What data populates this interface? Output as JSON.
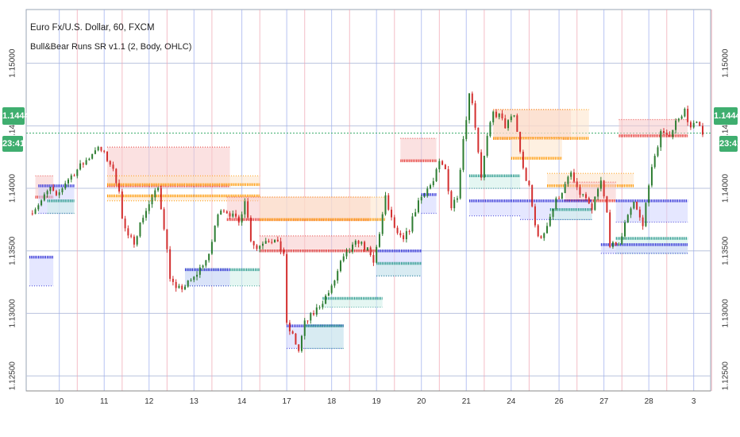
{
  "header": {
    "title": "Euro Fx/U.S. Dollar, 60, FXCM",
    "indicator": "Bull&Bear Runs SR v1.1 (2, Body, OHLC)"
  },
  "price_badge": "1.14442",
  "time_badge": "23:41",
  "colors": {
    "up_candle": "#2e7d32",
    "down_candle": "#d32f2f",
    "bear_line": "#e53935",
    "bear_zone": "#f8c8c8",
    "bear_line2": "#ff9800",
    "bear_zone2": "#fde4c8",
    "bull_line": "#2f2fd6",
    "bull_zone": "#cfd3ff",
    "bull_line2": "#26988a",
    "bull_zone2": "#cdeee8",
    "badge": "#3fae6f"
  },
  "chart_data": {
    "type": "candlestick",
    "symbol": "EURUSD",
    "ylim": [
      1.1238,
      1.1543
    ],
    "x_tick_labels": [
      "10",
      "11",
      "12",
      "13",
      "14",
      "17",
      "18",
      "19",
      "20",
      "21",
      "24",
      "26",
      "27",
      "28",
      "3"
    ],
    "y_tick_labels": [
      "1.15000",
      "1.14500",
      "1.14000",
      "1.13500",
      "1.13000",
      "1.12500"
    ],
    "y_tick_values": [
      1.15,
      1.145,
      1.14,
      1.135,
      1.13,
      1.125
    ],
    "current_price": 1.14442,
    "price_path": [
      [
        0,
        1.138
      ],
      [
        4,
        1.139
      ],
      [
        7,
        1.14
      ],
      [
        9,
        1.1392
      ],
      [
        12,
        1.1405
      ],
      [
        16,
        1.1415
      ],
      [
        20,
        1.1425
      ],
      [
        22,
        1.1432
      ],
      [
        24,
        1.143
      ],
      [
        27,
        1.142
      ],
      [
        30,
        1.14
      ],
      [
        31,
        1.1375
      ],
      [
        33,
        1.136
      ],
      [
        35,
        1.1358
      ],
      [
        38,
        1.1378
      ],
      [
        41,
        1.1392
      ],
      [
        43,
        1.14
      ],
      [
        45,
        1.137
      ],
      [
        47,
        1.133
      ],
      [
        49,
        1.1318
      ],
      [
        52,
        1.1322
      ],
      [
        55,
        1.1328
      ],
      [
        58,
        1.134
      ],
      [
        60,
        1.1345
      ],
      [
        62,
        1.137
      ],
      [
        64,
        1.1385
      ],
      [
        67,
        1.138
      ],
      [
        70,
        1.1372
      ],
      [
        72,
        1.1392
      ],
      [
        74,
        1.136
      ],
      [
        76,
        1.1352
      ],
      [
        79,
        1.136
      ],
      [
        82,
        1.1358
      ],
      [
        85,
        1.1348
      ],
      [
        86,
        1.129
      ],
      [
        88,
        1.1282
      ],
      [
        90,
        1.127
      ],
      [
        92,
        1.1292
      ],
      [
        95,
        1.13
      ],
      [
        98,
        1.131
      ],
      [
        101,
        1.132
      ],
      [
        104,
        1.134
      ],
      [
        107,
        1.135
      ],
      [
        110,
        1.1358
      ],
      [
        113,
        1.135
      ],
      [
        115,
        1.134
      ],
      [
        117,
        1.1365
      ],
      [
        119,
        1.1392
      ],
      [
        121,
        1.1375
      ],
      [
        123,
        1.1362
      ],
      [
        125,
        1.1358
      ],
      [
        127,
        1.1368
      ],
      [
        130,
        1.139
      ],
      [
        133,
        1.14
      ],
      [
        135,
        1.1405
      ],
      [
        137,
        1.142
      ],
      [
        139,
        1.1415
      ],
      [
        141,
        1.1385
      ],
      [
        143,
        1.1395
      ],
      [
        145,
        1.144
      ],
      [
        147,
        1.1475
      ],
      [
        148,
        1.147
      ],
      [
        150,
        1.143
      ],
      [
        151,
        1.141
      ],
      [
        153,
        1.144
      ],
      [
        155,
        1.146
      ],
      [
        157,
        1.1458
      ],
      [
        159,
        1.145
      ],
      [
        162,
        1.1458
      ],
      [
        163,
        1.1445
      ],
      [
        165,
        1.1415
      ],
      [
        167,
        1.14
      ],
      [
        169,
        1.137
      ],
      [
        171,
        1.1358
      ],
      [
        173,
        1.1372
      ],
      [
        176,
        1.139
      ],
      [
        179,
        1.1402
      ],
      [
        181,
        1.1412
      ],
      [
        183,
        1.1398
      ],
      [
        186,
        1.1392
      ],
      [
        188,
        1.138
      ],
      [
        189,
        1.1392
      ],
      [
        191,
        1.1405
      ],
      [
        193,
        1.138
      ],
      [
        194,
        1.1356
      ],
      [
        196,
        1.1352
      ],
      [
        198,
        1.1362
      ],
      [
        200,
        1.138
      ],
      [
        202,
        1.139
      ],
      [
        204,
        1.1376
      ],
      [
        205,
        1.137
      ],
      [
        207,
        1.1405
      ],
      [
        209,
        1.1425
      ],
      [
        211,
        1.1445
      ],
      [
        213,
        1.144
      ],
      [
        215,
        1.1448
      ],
      [
        217,
        1.1458
      ],
      [
        219,
        1.1462
      ],
      [
        221,
        1.1448
      ],
      [
        223,
        1.1452
      ],
      [
        225,
        1.1442
      ]
    ],
    "bear_levels": [
      {
        "x1": 2,
        "x2": 8,
        "top": 1.141,
        "line": 1.1393,
        "zone": "bear"
      },
      {
        "x1": 26,
        "x2": 67,
        "top": 1.1433,
        "line": 1.1402,
        "zone": "bear"
      },
      {
        "x1": 26,
        "x2": 77,
        "top": 1.141,
        "line": 1.1403,
        "zone": "bear2"
      },
      {
        "x1": 26,
        "x2": 77,
        "top": 1.139,
        "line": 1.1394,
        "zone": "bear2"
      },
      {
        "x1": 66,
        "x2": 114,
        "top": 1.1393,
        "line": 1.1375,
        "zone": "bear"
      },
      {
        "x1": 77,
        "x2": 119,
        "top": 1.1393,
        "line": 1.1375,
        "zone": "bear2"
      },
      {
        "x1": 77,
        "x2": 116,
        "top": 1.1362,
        "line": 1.135,
        "zone": "bear"
      },
      {
        "x1": 124,
        "x2": 136,
        "top": 1.144,
        "line": 1.1422,
        "zone": "bear"
      },
      {
        "x1": 155,
        "x2": 181,
        "top": 1.1463,
        "line": 1.144,
        "zone": "bear"
      },
      {
        "x1": 155,
        "x2": 187,
        "top": 1.1463,
        "line": 1.144,
        "zone": "bear2"
      },
      {
        "x1": 161,
        "x2": 178,
        "top": 1.144,
        "line": 1.1424,
        "zone": "bear2"
      },
      {
        "x1": 173,
        "x2": 202,
        "top": 1.1412,
        "line": 1.1402,
        "zone": "bear2"
      },
      {
        "x1": 179,
        "x2": 196,
        "top": 1.1405,
        "line": 1.139,
        "zone": "bear"
      },
      {
        "x1": 197,
        "x2": 220,
        "top": 1.1455,
        "line": 1.1442,
        "zone": "bear"
      }
    ],
    "bull_levels": [
      {
        "x1": 0,
        "x2": 8,
        "bottom": 1.1322,
        "line": 1.1345,
        "zone": "bull"
      },
      {
        "x1": 3,
        "x2": 15,
        "bottom": 1.138,
        "line": 1.1402,
        "zone": "bull"
      },
      {
        "x1": 6,
        "x2": 15,
        "bottom": 1.138,
        "line": 1.139,
        "zone": "bull2"
      },
      {
        "x1": 52,
        "x2": 77,
        "bottom": 1.1322,
        "line": 1.1335,
        "zone": "bull2"
      },
      {
        "x1": 52,
        "x2": 67,
        "bottom": 1.1322,
        "line": 1.1335,
        "zone": "bull"
      },
      {
        "x1": 86,
        "x2": 105,
        "bottom": 1.1272,
        "line": 1.129,
        "zone": "bull"
      },
      {
        "x1": 92,
        "x2": 105,
        "bottom": 1.1272,
        "line": 1.129,
        "zone": "bull2"
      },
      {
        "x1": 98,
        "x2": 118,
        "bottom": 1.1305,
        "line": 1.1312,
        "zone": "bull2"
      },
      {
        "x1": 116,
        "x2": 131,
        "bottom": 1.133,
        "line": 1.135,
        "zone": "bull"
      },
      {
        "x1": 116,
        "x2": 131,
        "bottom": 1.133,
        "line": 1.134,
        "zone": "bull2"
      },
      {
        "x1": 131,
        "x2": 136,
        "bottom": 1.138,
        "line": 1.1395,
        "zone": "bull"
      },
      {
        "x1": 147,
        "x2": 164,
        "bottom": 1.1378,
        "line": 1.139,
        "zone": "bull"
      },
      {
        "x1": 147,
        "x2": 164,
        "bottom": 1.14,
        "line": 1.141,
        "zone": "bull2"
      },
      {
        "x1": 164,
        "x2": 188,
        "bottom": 1.1375,
        "line": 1.139,
        "zone": "bull"
      },
      {
        "x1": 174,
        "x2": 188,
        "bottom": 1.1375,
        "line": 1.1383,
        "zone": "bull2"
      },
      {
        "x1": 196,
        "x2": 220,
        "bottom": 1.1373,
        "line": 1.139,
        "zone": "bull"
      },
      {
        "x1": 196,
        "x2": 220,
        "bottom": 1.1348,
        "line": 1.136,
        "zone": "bull2"
      },
      {
        "x1": 191,
        "x2": 220,
        "bottom": 1.1348,
        "line": 1.1355,
        "zone": "bull"
      }
    ],
    "grid": true,
    "n_bars": 226
  }
}
